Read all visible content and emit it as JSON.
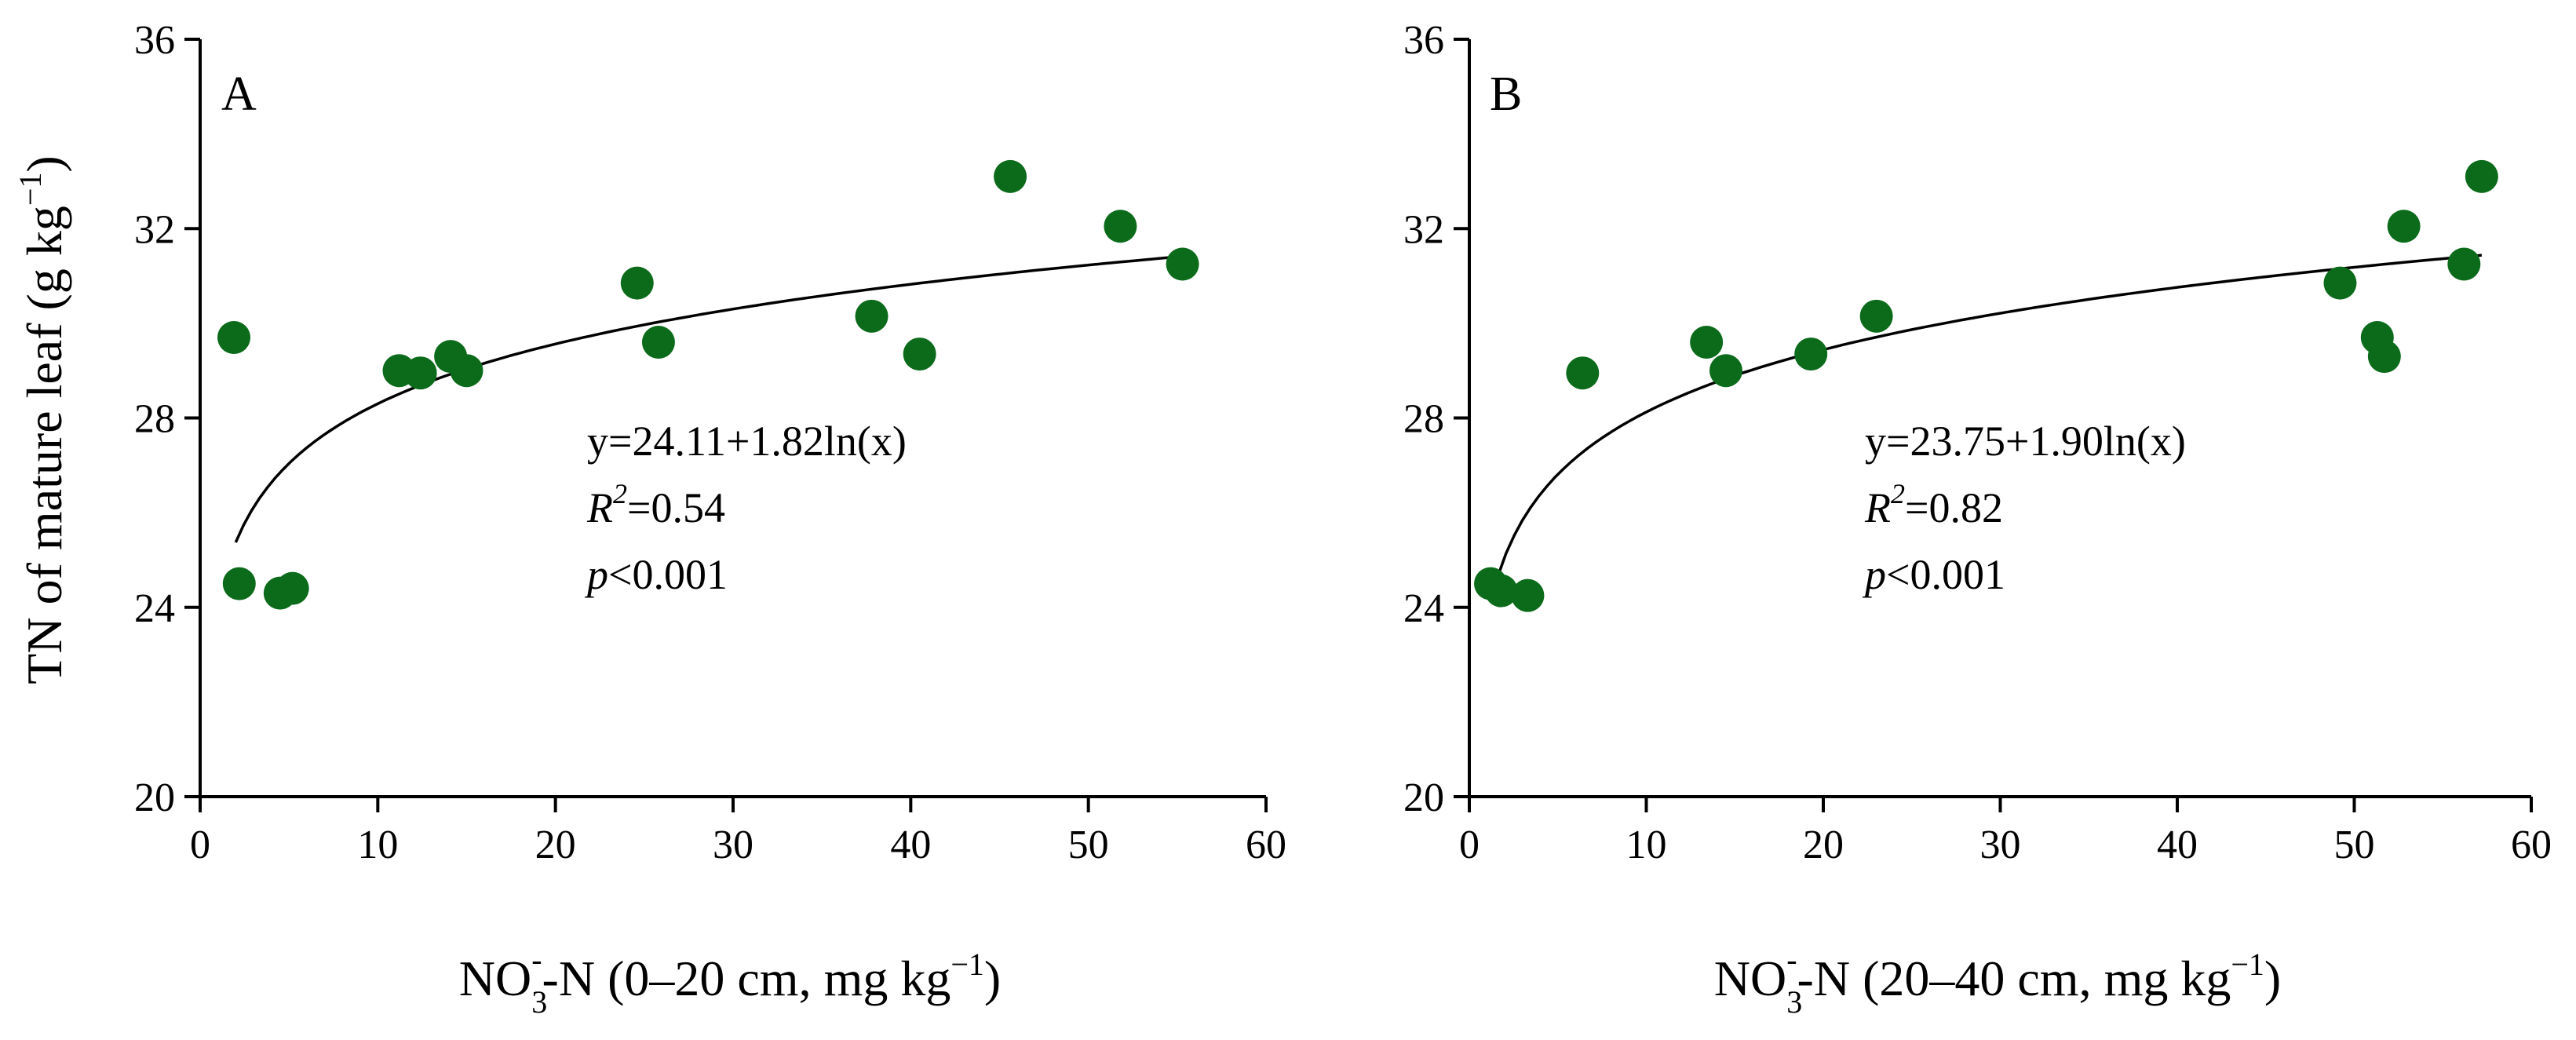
{
  "chart_data": [
    {
      "type": "scatter",
      "panel_label": "A",
      "ylabel": "TN of mature leaf (g kg",
      "ylabel_sup": "−1",
      "ylabel_close": ")",
      "xlabel": {
        "pre": "NO",
        "sub": "3",
        "sup": "-",
        "post": "-N (0–20 cm, mg kg",
        "sup2": "−1",
        "close": ")"
      },
      "xlim": [
        0,
        60
      ],
      "ylim": [
        20,
        36
      ],
      "xticks": [
        0,
        10,
        20,
        30,
        40,
        50,
        60
      ],
      "yticks": [
        20,
        24,
        28,
        32,
        36
      ],
      "marker_color": "#0b6b1a",
      "points": [
        {
          "x": 1.9,
          "y": 29.7
        },
        {
          "x": 2.2,
          "y": 24.5
        },
        {
          "x": 4.5,
          "y": 24.3
        },
        {
          "x": 5.2,
          "y": 24.4
        },
        {
          "x": 11.2,
          "y": 29.0
        },
        {
          "x": 12.4,
          "y": 28.95
        },
        {
          "x": 14.1,
          "y": 29.3
        },
        {
          "x": 15.0,
          "y": 29.0
        },
        {
          "x": 24.6,
          "y": 30.85
        },
        {
          "x": 25.8,
          "y": 29.6
        },
        {
          "x": 37.8,
          "y": 30.15
        },
        {
          "x": 40.5,
          "y": 29.35
        },
        {
          "x": 45.6,
          "y": 33.1
        },
        {
          "x": 51.8,
          "y": 32.05
        },
        {
          "x": 55.3,
          "y": 31.25
        }
      ],
      "fit": {
        "a": 24.11,
        "b": 1.82,
        "x_range": [
          2.0,
          55.3
        ]
      },
      "equation": "y=24.11+1.82ln(x)",
      "r2_label": "R",
      "r2_sup": "2",
      "r2_value": "=0.54",
      "p_label": "p",
      "p_value": "<0.001"
    },
    {
      "type": "scatter",
      "panel_label": "B",
      "xlabel": {
        "pre": "NO",
        "sub": "3",
        "sup": "-",
        "post": "-N (20–40 cm, mg kg",
        "sup2": "−1",
        "close": ")"
      },
      "xlim": [
        0,
        60
      ],
      "ylim": [
        20,
        36
      ],
      "xticks": [
        0,
        10,
        20,
        30,
        40,
        50,
        60
      ],
      "yticks": [
        20,
        24,
        28,
        32,
        36
      ],
      "marker_color": "#0b6b1a",
      "points": [
        {
          "x": 1.2,
          "y": 24.5
        },
        {
          "x": 1.8,
          "y": 24.35
        },
        {
          "x": 3.3,
          "y": 24.25
        },
        {
          "x": 6.4,
          "y": 28.95
        },
        {
          "x": 13.4,
          "y": 29.6
        },
        {
          "x": 14.5,
          "y": 29.0
        },
        {
          "x": 19.3,
          "y": 29.35
        },
        {
          "x": 23.0,
          "y": 30.15
        },
        {
          "x": 49.2,
          "y": 30.85
        },
        {
          "x": 51.3,
          "y": 29.7
        },
        {
          "x": 51.7,
          "y": 29.3
        },
        {
          "x": 52.8,
          "y": 32.05
        },
        {
          "x": 56.2,
          "y": 31.25
        },
        {
          "x": 57.2,
          "y": 33.1
        }
      ],
      "fit": {
        "a": 23.75,
        "b": 1.9,
        "x_range": [
          1.6,
          57.2
        ]
      },
      "equation": "y=23.75+1.90ln(x)",
      "r2_label": "R",
      "r2_sup": "2",
      "r2_value": "=0.82",
      "p_label": "p",
      "p_value": "<0.001"
    }
  ]
}
